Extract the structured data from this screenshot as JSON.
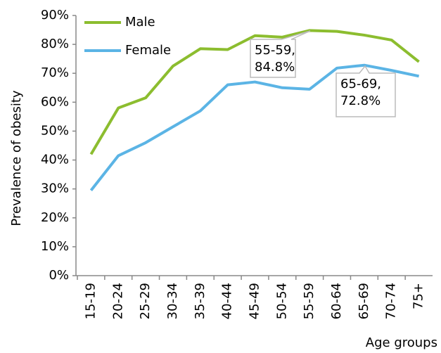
{
  "chart_data": {
    "type": "line",
    "y_label": "Prevalence of obesity",
    "x_label": "Age groups",
    "categories": [
      "15-19",
      "20-24",
      "25-29",
      "30-34",
      "35-39",
      "40-44",
      "45-49",
      "50-54",
      "55-59",
      "60-64",
      "65-69",
      "70-74",
      "75+"
    ],
    "series": [
      {
        "name": "Male",
        "color": "#8cbd2f",
        "values": [
          42,
          58,
          61.5,
          72.5,
          78.5,
          78.2,
          83,
          82.5,
          84.8,
          84.5,
          83.2,
          81.5,
          74
        ]
      },
      {
        "name": "Female",
        "color": "#5bb4e5",
        "values": [
          29.5,
          41.5,
          46,
          51.5,
          57,
          66,
          67,
          65,
          64.5,
          71.8,
          72.8,
          71,
          69
        ]
      }
    ],
    "ylim": [
      0,
      90
    ],
    "yticks": [
      {
        "value": 0,
        "label": "0%"
      },
      {
        "value": 10,
        "label": "10%"
      },
      {
        "value": 20,
        "label": "20%"
      },
      {
        "value": 30,
        "label": "30%"
      },
      {
        "value": 40,
        "label": "40%"
      },
      {
        "value": 50,
        "label": "50%"
      },
      {
        "value": 60,
        "label": "60%"
      },
      {
        "value": 70,
        "label": "70%"
      },
      {
        "value": 80,
        "label": "80%"
      },
      {
        "value": 90,
        "label": "90%"
      }
    ],
    "grid": false,
    "legend": "top-left",
    "annotations": [
      {
        "lines": [
          "55-59,",
          "84.8%"
        ]
      },
      {
        "lines": [
          "65-69,",
          "72.8%"
        ]
      }
    ]
  }
}
